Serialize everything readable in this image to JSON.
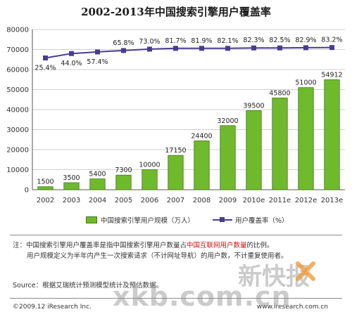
{
  "colors": {
    "bar": "#6fba2c",
    "bar_edge": "#3f7a12",
    "line": "#4b3b8f",
    "grid": "#d0d0d0"
  },
  "chart_data": {
    "type": "bar",
    "title": "2002-2013年中国搜索引擎用户覆盖率",
    "categories": [
      "2002",
      "2003",
      "2004",
      "2005",
      "2006",
      "2007",
      "2008",
      "2009",
      "2010e",
      "2011e",
      "2012e",
      "2013e"
    ],
    "series": [
      {
        "name": "中国搜索引擎用户规模（万人）",
        "type": "bar",
        "values": [
          1500,
          3500,
          5400,
          7300,
          10000,
          17150,
          24400,
          32000,
          39500,
          45800,
          51000,
          54912
        ],
        "labels": [
          "1500",
          "3500",
          "5400",
          "7300",
          "10000",
          "17150",
          "24400",
          "32000",
          "39500",
          "45800",
          "51000",
          "54912"
        ]
      },
      {
        "name": "用户覆盖率（%）",
        "type": "line",
        "values": [
          25.4,
          44.0,
          57.4,
          65.8,
          73.0,
          81.7,
          81.9,
          82.1,
          82.3,
          82.5,
          82.9,
          83.2
        ],
        "labels": [
          "25.4%",
          "44.0%",
          "57.4%",
          "65.8%",
          "73.0%",
          "81.7%",
          "81.9%",
          "82.1%",
          "82.3%",
          "82.5%",
          "82.9%",
          "83.2%"
        ],
        "plot_values": [
          65800,
          68000,
          68800,
          69500,
          70200,
          70600,
          70600,
          70600,
          70800,
          70800,
          70900,
          71000
        ]
      }
    ],
    "y_ticks": [
      "0",
      "10000",
      "20000",
      "30000",
      "40000",
      "50000",
      "60000",
      "70000",
      "80000"
    ],
    "ylim": [
      0,
      80000
    ],
    "grid": true
  },
  "notes": {
    "prefix": "注：",
    "line1_a": "中国搜索引擎用户覆盖率是指中国搜索引擎用户数量占",
    "line1_red": "中国互联网用户数量",
    "line1_b": "的比例。",
    "line2": "用户规模定义为半年内产生一次搜索请求（不计网址导航）的用户数，不计重复使用者。"
  },
  "source": "Source：根据艾瑞统计预测模型统计及预估数据。",
  "footer": {
    "copyright": "©2009.12 iResearch Inc.",
    "site": "www.iresearch.com.cn"
  },
  "watermark": {
    "domain": "xkb.com.cn",
    "cn": "新快报"
  }
}
